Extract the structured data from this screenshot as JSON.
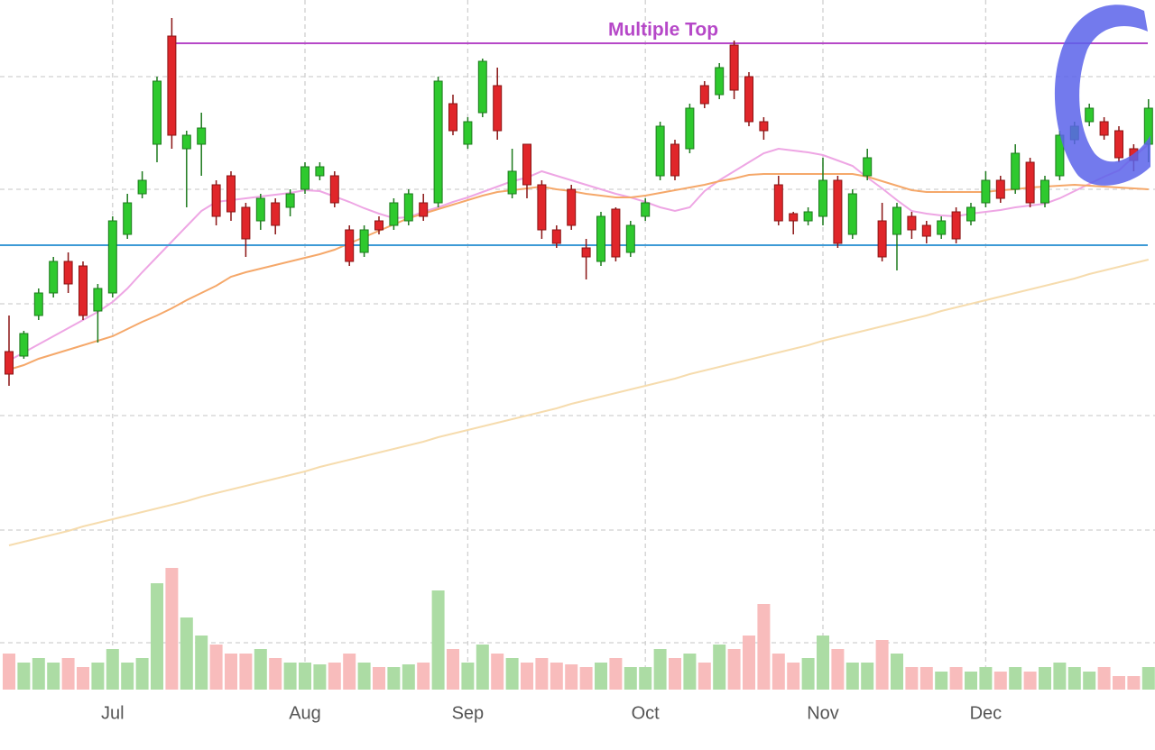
{
  "chart_data": {
    "type": "candlestick",
    "categories": [
      null,
      null,
      null,
      null,
      null,
      null,
      null,
      "Jul",
      null,
      null,
      null,
      null,
      null,
      null,
      null,
      null,
      null,
      null,
      null,
      null,
      "Aug",
      null,
      null,
      null,
      null,
      null,
      null,
      null,
      null,
      null,
      null,
      "Sep",
      null,
      null,
      null,
      null,
      null,
      null,
      null,
      null,
      null,
      null,
      null,
      "Oct",
      null,
      null,
      null,
      null,
      null,
      null,
      null,
      null,
      null,
      null,
      null,
      "Nov",
      null,
      null,
      null,
      null,
      null,
      null,
      null,
      null,
      null,
      null,
      "Dec",
      null,
      null,
      null,
      null,
      null,
      null,
      null,
      null,
      null,
      null,
      null
    ],
    "open": [
      230,
      225,
      270,
      295,
      330,
      325,
      275,
      295,
      360,
      405,
      460,
      580,
      455,
      460,
      415,
      425,
      390,
      375,
      395,
      390,
      410,
      425,
      425,
      365,
      340,
      375,
      370,
      375,
      395,
      395,
      505,
      460,
      495,
      525,
      405,
      460,
      415,
      365,
      410,
      345,
      330,
      388,
      340,
      380,
      425,
      460,
      455,
      525,
      515,
      570,
      535,
      485,
      415,
      383,
      375,
      380,
      420,
      360,
      425,
      375,
      360,
      380,
      370,
      360,
      385,
      375,
      395,
      420,
      410,
      440,
      395,
      425,
      465,
      485,
      485,
      475,
      455,
      460
    ],
    "high": [
      270,
      253,
      300,
      335,
      340,
      330,
      305,
      380,
      405,
      430,
      535,
      600,
      475,
      495,
      420,
      430,
      395,
      405,
      400,
      410,
      440,
      440,
      430,
      370,
      370,
      380,
      400,
      410,
      405,
      535,
      515,
      490,
      555,
      545,
      455,
      460,
      420,
      370,
      415,
      355,
      385,
      390,
      375,
      400,
      485,
      465,
      505,
      530,
      550,
      575,
      540,
      490,
      425,
      385,
      390,
      445,
      425,
      410,
      455,
      395,
      395,
      385,
      375,
      380,
      390,
      395,
      430,
      425,
      460,
      445,
      425,
      475,
      485,
      505,
      490,
      480,
      460,
      510
    ],
    "low": [
      192,
      222,
      265,
      290,
      295,
      265,
      240,
      290,
      355,
      400,
      440,
      455,
      390,
      425,
      370,
      375,
      335,
      365,
      360,
      380,
      405,
      420,
      390,
      325,
      335,
      360,
      365,
      370,
      375,
      390,
      470,
      455,
      490,
      465,
      400,
      400,
      355,
      345,
      365,
      310,
      325,
      330,
      335,
      375,
      420,
      420,
      450,
      500,
      510,
      510,
      480,
      465,
      370,
      360,
      370,
      370,
      345,
      355,
      420,
      330,
      320,
      355,
      350,
      355,
      350,
      370,
      390,
      395,
      405,
      390,
      390,
      420,
      460,
      480,
      465,
      440,
      430,
      440
    ],
    "close": [
      205,
      250,
      295,
      330,
      305,
      270,
      300,
      375,
      395,
      420,
      530,
      470,
      470,
      478,
      380,
      385,
      355,
      400,
      370,
      405,
      435,
      435,
      395,
      330,
      365,
      365,
      395,
      405,
      380,
      530,
      475,
      485,
      552,
      475,
      430,
      415,
      365,
      350,
      370,
      335,
      380,
      335,
      370,
      395,
      480,
      425,
      500,
      505,
      545,
      520,
      485,
      475,
      375,
      375,
      385,
      420,
      350,
      405,
      445,
      335,
      390,
      365,
      358,
      375,
      355,
      390,
      420,
      400,
      450,
      395,
      420,
      470,
      480,
      500,
      470,
      445,
      442,
      500
    ],
    "volume": [
      40,
      30,
      35,
      30,
      35,
      25,
      30,
      45,
      30,
      35,
      118,
      135,
      80,
      60,
      50,
      40,
      40,
      45,
      35,
      30,
      30,
      28,
      30,
      40,
      30,
      25,
      25,
      28,
      30,
      110,
      45,
      30,
      50,
      40,
      35,
      30,
      35,
      30,
      28,
      25,
      30,
      35,
      25,
      25,
      45,
      35,
      40,
      30,
      50,
      45,
      60,
      95,
      40,
      30,
      35,
      60,
      45,
      30,
      30,
      55,
      40,
      25,
      25,
      20,
      25,
      20,
      25,
      20,
      25,
      20,
      25,
      30,
      25,
      20,
      25,
      15,
      15,
      25
    ],
    "moving_averages": [
      {
        "color": "#eea6e4",
        "values": [
          220,
          229,
          238,
          247,
          256,
          265,
          274,
          285,
          300,
          318,
          335,
          352,
          369,
          386,
          396,
          398,
          400,
          402,
          404,
          406,
          409,
          408,
          402,
          396,
          389,
          383,
          378,
          379,
          385,
          390,
          396,
          401,
          407,
          413,
          419,
          423,
          430,
          425,
          420,
          415,
          410,
          405,
          401,
          396,
          390,
          386,
          390,
          408,
          420,
          430,
          440,
          450,
          455,
          453,
          451,
          448,
          442,
          436,
          423,
          411,
          398,
          386,
          383,
          381,
          380,
          383,
          385,
          387,
          390,
          392,
          394,
          400,
          408,
          416,
          424,
          431,
          446,
          460
        ]
      },
      {
        "color": "#f5a86a",
        "values": [
          210,
          215,
          222,
          227,
          232,
          237,
          242,
          247,
          255,
          263,
          270,
          278,
          287,
          295,
          303,
          313,
          318,
          322,
          326,
          330,
          334,
          338,
          343,
          350,
          357,
          364,
          371,
          378,
          383,
          388,
          393,
          398,
          403,
          407,
          409,
          411,
          413,
          410,
          408,
          405,
          403,
          401,
          401,
          403,
          406,
          409,
          412,
          415,
          419,
          422,
          426,
          427,
          427,
          427,
          427,
          427,
          427,
          427,
          424,
          419,
          414,
          409,
          407,
          407,
          407,
          407,
          407,
          409,
          410,
          412,
          413,
          414,
          415,
          414,
          413,
          412,
          411,
          410
        ]
      },
      {
        "color": "#f6dcae",
        "values": [
          15,
          19,
          23,
          27,
          31,
          36,
          40,
          44,
          48,
          52,
          56,
          60,
          64,
          69,
          73,
          77,
          81,
          85,
          89,
          93,
          97,
          102,
          106,
          110,
          114,
          118,
          122,
          126,
          130,
          135,
          139,
          143,
          147,
          151,
          155,
          159,
          163,
          167,
          172,
          176,
          180,
          184,
          188,
          192,
          196,
          200,
          205,
          209,
          213,
          217,
          221,
          225,
          229,
          233,
          237,
          242,
          246,
          250,
          254,
          258,
          262,
          266,
          270,
          275,
          279,
          283,
          287,
          291,
          295,
          299,
          303,
          307,
          311,
          316,
          320,
          324,
          328,
          332
        ]
      }
    ],
    "ylim": [
      0,
      620
    ],
    "ygrid": [
      535,
      410,
      283,
      159,
      32
    ],
    "volume_ylim": [
      0,
      150
    ],
    "volume_ygrid": [
      52
    ],
    "up_color": "#2ec92e",
    "down_color": "#e0262a",
    "up_volume_color": "#acdca4",
    "down_volume_color": "#f8bcbc",
    "resistance": {
      "label": "Multiple Top",
      "value": 572,
      "start": 11,
      "color": "#b648c8"
    },
    "support": {
      "value": 348,
      "color": "#3d9ad6"
    }
  }
}
